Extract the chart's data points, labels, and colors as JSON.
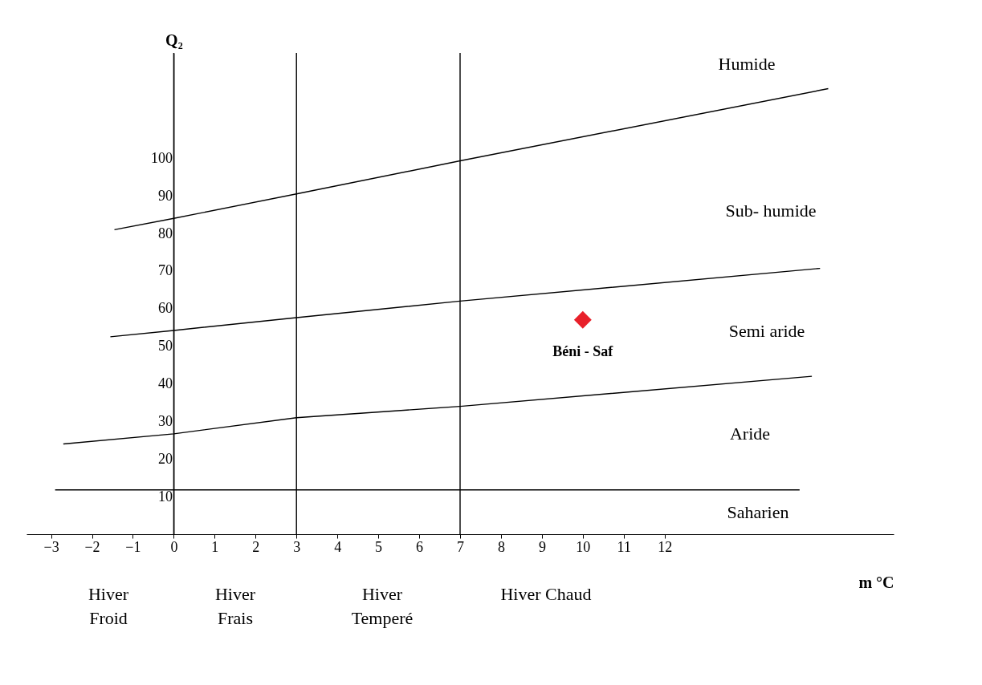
{
  "chart_data": {
    "type": "line",
    "xlabel": "m °C",
    "ylabel": "Q₂",
    "xlim": [
      -3.6,
      17.6
    ],
    "ylim": [
      0,
      128
    ],
    "xticks": [
      -3,
      -2,
      -1,
      0,
      1,
      2,
      3,
      4,
      5,
      6,
      7,
      8,
      9,
      10,
      11,
      12
    ],
    "yticks": [
      10,
      20,
      30,
      40,
      50,
      60,
      70,
      80,
      90,
      100
    ],
    "grid": false,
    "series": [
      {
        "color": "#000000",
        "x": [
          -1.45,
          0,
          3,
          7,
          16
        ],
        "values": [
          81,
          84,
          90.5,
          99.3,
          118.5
        ]
      },
      {
        "color": "#000000",
        "x": [
          -1.55,
          0,
          3,
          7,
          15.8
        ],
        "values": [
          52.5,
          54.2,
          57.6,
          62,
          70.7
        ]
      },
      {
        "color": "#000000",
        "x": [
          -2.7,
          0,
          3,
          7,
          15.6
        ],
        "values": [
          24,
          26.7,
          31,
          34,
          42
        ]
      },
      {
        "color": "#000000",
        "x": [
          -2.9,
          15.3
        ],
        "values": [
          11.8,
          11.8
        ]
      },
      {
        "type": "scatter",
        "name": "Béni - Saf",
        "color": "#e8202a",
        "marker": "diamond",
        "x": [
          10
        ],
        "values": [
          57
        ]
      }
    ],
    "ref_lines": [
      {
        "axis": "x",
        "value": 0
      },
      {
        "axis": "x",
        "value": 3
      },
      {
        "axis": "x",
        "value": 7
      }
    ],
    "annotations": [
      "Humide",
      "Sub- humide",
      "Semi aride",
      "Aride",
      "Saharien",
      "Hiver\nFroid",
      "Hiver\nFrais",
      "Hiver\nTemperé",
      "Hiver Chaud"
    ]
  }
}
